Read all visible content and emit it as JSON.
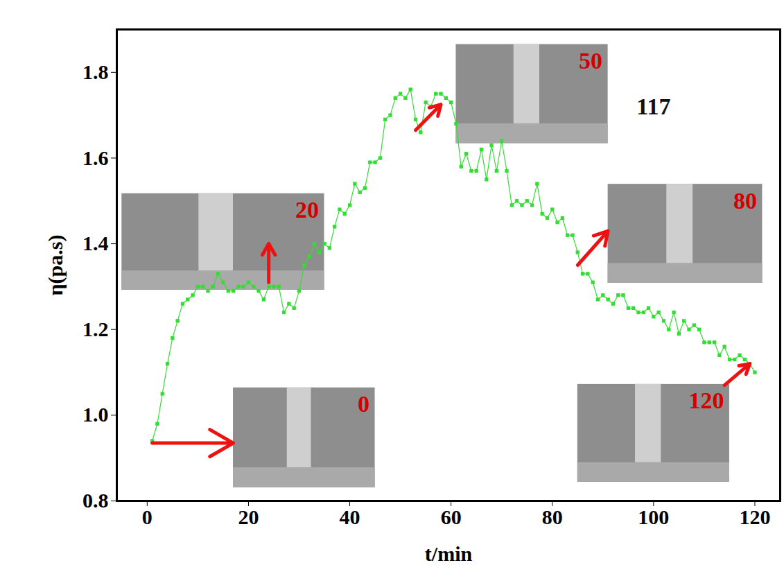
{
  "chart_data": {
    "type": "line",
    "xlabel": "t/min",
    "ylabel": "η(pa.s)",
    "x": [
      1,
      2,
      3,
      4,
      5,
      6,
      7,
      8,
      9,
      10,
      11,
      12,
      13,
      14,
      15,
      16,
      17,
      18,
      19,
      20,
      21,
      22,
      23,
      24,
      25,
      26,
      27,
      28,
      29,
      30,
      31,
      32,
      33,
      34,
      35,
      36,
      37,
      38,
      39,
      40,
      41,
      42,
      43,
      44,
      45,
      46,
      47,
      48,
      49,
      50,
      51,
      52,
      53,
      54,
      55,
      56,
      57,
      58,
      59,
      60,
      61,
      62,
      63,
      64,
      65,
      66,
      67,
      68,
      69,
      70,
      71,
      72,
      73,
      74,
      75,
      76,
      77,
      78,
      79,
      80,
      81,
      82,
      83,
      84,
      85,
      86,
      87,
      88,
      89,
      90,
      91,
      92,
      93,
      94,
      95,
      96,
      97,
      98,
      99,
      100,
      101,
      102,
      103,
      104,
      105,
      106,
      107,
      108,
      109,
      110,
      111,
      112,
      113,
      114,
      115,
      116,
      117,
      118,
      119,
      120
    ],
    "values": [
      0.94,
      0.98,
      1.05,
      1.12,
      1.18,
      1.22,
      1.26,
      1.27,
      1.28,
      1.3,
      1.3,
      1.29,
      1.3,
      1.33,
      1.31,
      1.29,
      1.29,
      1.3,
      1.3,
      1.31,
      1.3,
      1.29,
      1.27,
      1.3,
      1.3,
      1.3,
      1.24,
      1.26,
      1.25,
      1.29,
      1.35,
      1.37,
      1.4,
      1.38,
      1.4,
      1.39,
      1.44,
      1.48,
      1.47,
      1.49,
      1.54,
      1.52,
      1.53,
      1.59,
      1.59,
      1.6,
      1.69,
      1.7,
      1.74,
      1.75,
      1.74,
      1.76,
      1.69,
      1.66,
      1.73,
      1.72,
      1.75,
      1.75,
      1.74,
      1.73,
      1.68,
      1.58,
      1.61,
      1.57,
      1.57,
      1.62,
      1.55,
      1.63,
      1.57,
      1.64,
      1.57,
      1.49,
      1.5,
      1.49,
      1.5,
      1.49,
      1.54,
      1.47,
      1.46,
      1.48,
      1.45,
      1.46,
      1.42,
      1.42,
      1.38,
      1.33,
      1.33,
      1.31,
      1.27,
      1.28,
      1.27,
      1.26,
      1.28,
      1.28,
      1.25,
      1.25,
      1.24,
      1.24,
      1.25,
      1.23,
      1.24,
      1.22,
      1.2,
      1.24,
      1.19,
      1.22,
      1.2,
      1.21,
      1.2,
      1.17,
      1.17,
      1.17,
      1.14,
      1.16,
      1.13,
      1.13,
      1.14,
      1.13,
      1.12,
      1.1
    ],
    "color": "#33dd33",
    "marker": "square",
    "line_style": "solid",
    "xlim": [
      -6,
      125
    ],
    "ylim": [
      0.8,
      1.9
    ],
    "xticks": [
      0,
      20,
      40,
      60,
      80,
      100,
      120
    ],
    "yticks": [
      0.8,
      {
        "value": 1,
        "label": "1.0"
      },
      1.2,
      1.4,
      1.6,
      1.8
    ],
    "grid": false,
    "annotations": [
      {
        "text": "117"
      }
    ],
    "photo_times": [
      0,
      20,
      50,
      80,
      120
    ]
  }
}
